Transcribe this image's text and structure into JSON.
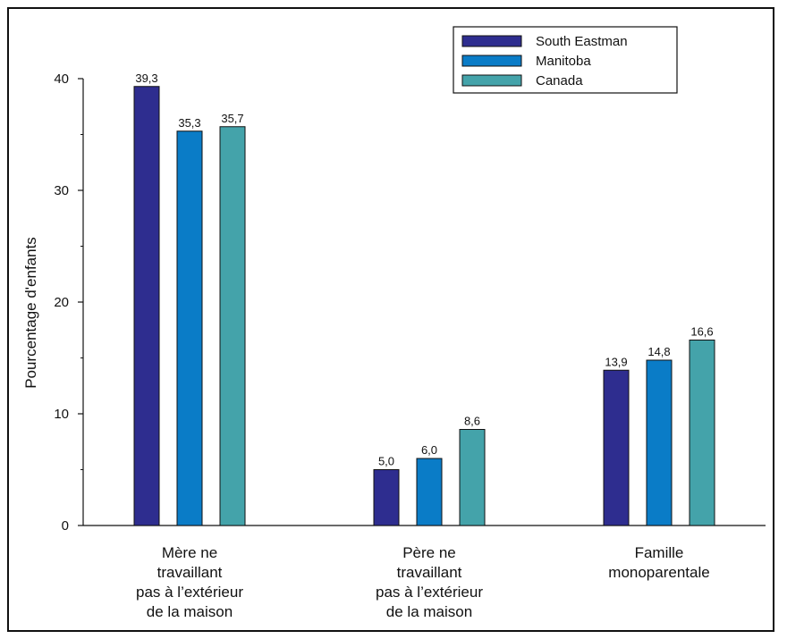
{
  "chart_data": {
    "type": "bar",
    "title": "",
    "xlabel": "",
    "ylabel": "Pourcentage d'enfants",
    "ylim": [
      0,
      40
    ],
    "yticks": [
      0,
      10,
      20,
      30,
      40
    ],
    "grid": false,
    "legend_position": "top-right",
    "categories": [
      [
        "Mère ne",
        "travaillant",
        "pas à l’extérieur",
        "de la maison"
      ],
      [
        "Père ne",
        "travaillant",
        "pas à l’extérieur",
        "de la maison"
      ],
      [
        "Famille",
        "monoparentale"
      ]
    ],
    "series": [
      {
        "name": "South Eastman",
        "color": "#2e2d8f",
        "values": [
          39.3,
          5.0,
          13.9
        ],
        "labels": [
          "39,3",
          "5,0",
          "13,9"
        ]
      },
      {
        "name": "Manitoba",
        "color": "#0a7cc7",
        "values": [
          35.3,
          6.0,
          14.8
        ],
        "labels": [
          "35,3",
          "6,0",
          "14,8"
        ]
      },
      {
        "name": "Canada",
        "color": "#44a3aa",
        "values": [
          35.7,
          8.6,
          16.6
        ],
        "labels": [
          "35,7",
          "8,6",
          "16,6"
        ]
      }
    ]
  }
}
